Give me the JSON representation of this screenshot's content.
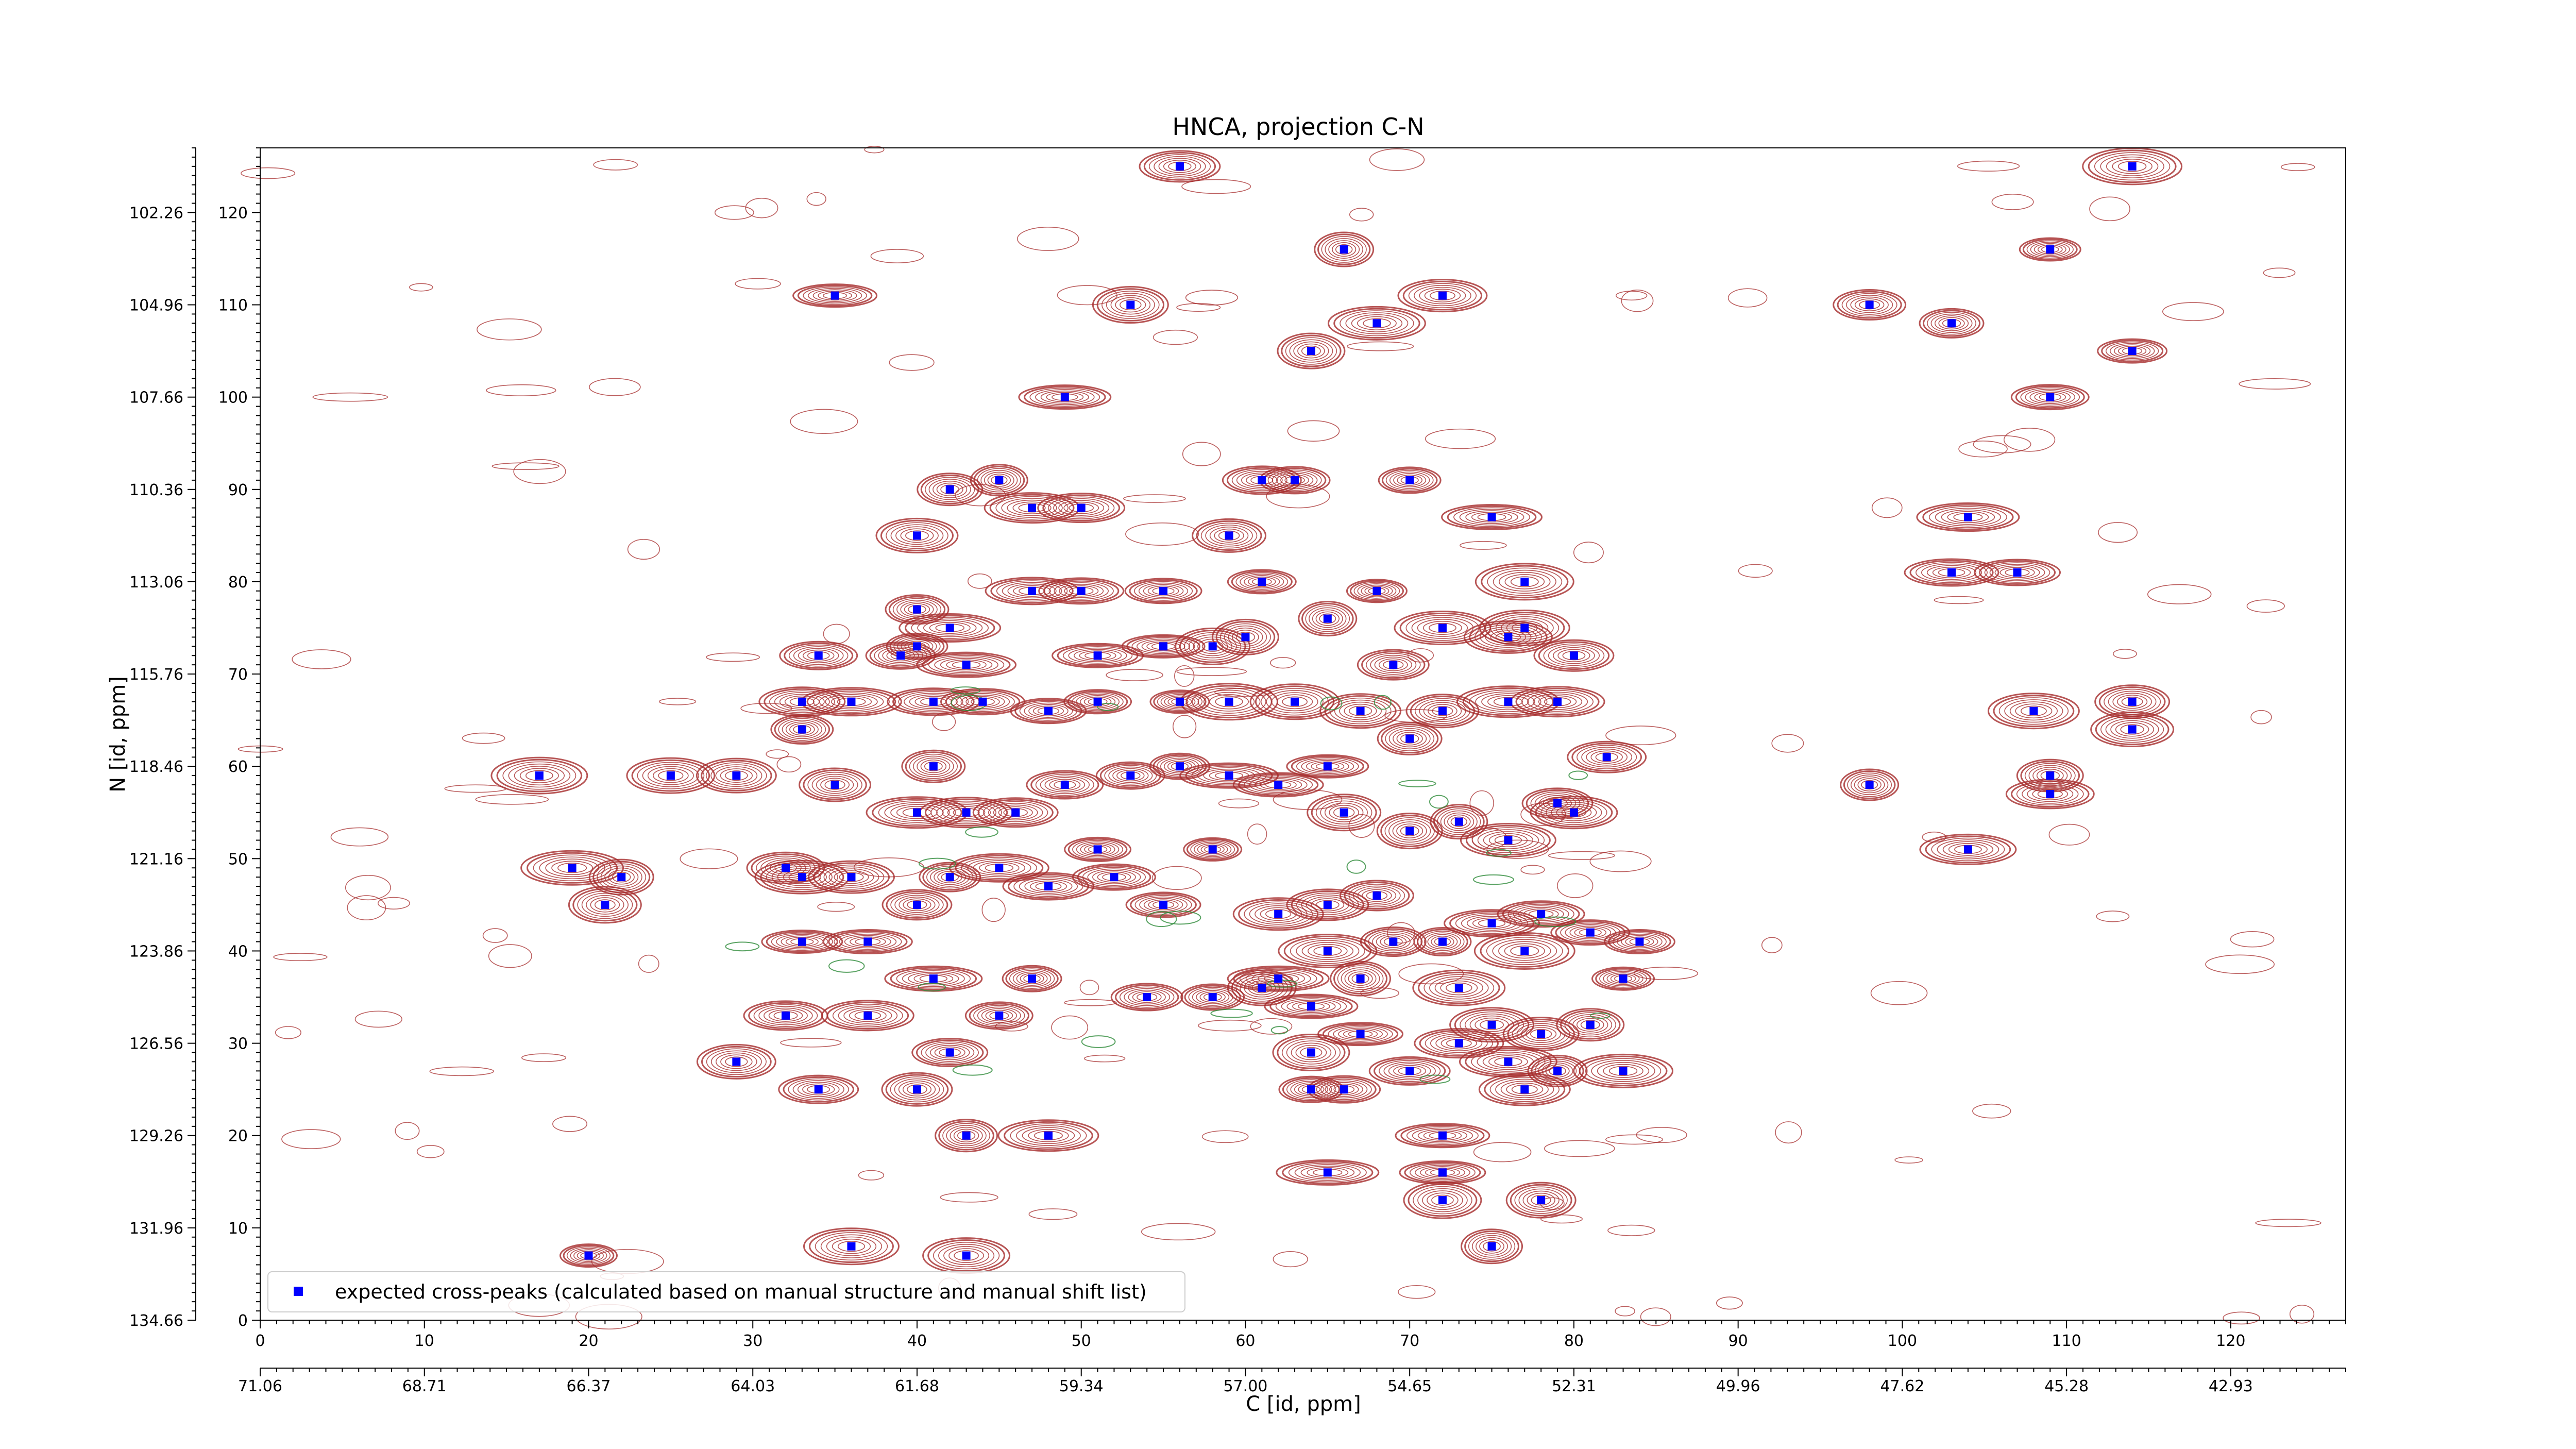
{
  "chart_data": {
    "type": "scatter",
    "title": "HNCA, projection C-N",
    "xlabel": "C [id, ppm]",
    "ylabel": "N [id, ppm]",
    "xlim": [
      0,
      127
    ],
    "ylim": [
      0,
      127
    ],
    "x_ticks": [
      0,
      10,
      20,
      30,
      40,
      50,
      60,
      70,
      80,
      90,
      100,
      110,
      120
    ],
    "x_secondary_ticks": [
      "71.06",
      "68.71",
      "66.37",
      "64.03",
      "61.68",
      "59.34",
      "57.00",
      "54.65",
      "52.31",
      "49.96",
      "47.62",
      "45.28",
      "42.93"
    ],
    "y_ticks": [
      0,
      10,
      20,
      30,
      40,
      50,
      60,
      70,
      80,
      90,
      100,
      110,
      120
    ],
    "y_secondary_ticks": [
      "134.66",
      "131.96",
      "129.26",
      "126.56",
      "123.86",
      "121.16",
      "118.46",
      "115.76",
      "113.06",
      "110.36",
      "107.66",
      "104.96",
      "102.26"
    ],
    "grid": false,
    "legend_position": "lower-left",
    "contour_colors": {
      "positive": "#a52a2a",
      "negative": "#2e8b3a"
    },
    "series": [
      {
        "name": "expected cross-peaks (calculated based on manual structure and manual shift list)",
        "color": "#0000ff",
        "marker": "square",
        "points": [
          [
            20,
            7
          ],
          [
            36,
            8
          ],
          [
            43,
            7
          ],
          [
            29,
            28
          ],
          [
            40,
            25
          ],
          [
            43,
            20
          ],
          [
            48,
            20
          ],
          [
            37,
            33
          ],
          [
            32,
            33
          ],
          [
            42,
            29
          ],
          [
            45,
            33
          ],
          [
            47,
            37
          ],
          [
            41,
            37
          ],
          [
            37,
            41
          ],
          [
            33,
            41
          ],
          [
            21,
            45
          ],
          [
            22,
            48
          ],
          [
            19,
            49
          ],
          [
            33,
            48
          ],
          [
            36,
            48
          ],
          [
            32,
            49
          ],
          [
            40,
            45
          ],
          [
            42,
            48
          ],
          [
            45,
            49
          ],
          [
            48,
            47
          ],
          [
            52,
            48
          ],
          [
            55,
            45
          ],
          [
            51,
            51
          ],
          [
            58,
            51
          ],
          [
            17,
            59
          ],
          [
            25,
            59
          ],
          [
            29,
            59
          ],
          [
            35,
            58
          ],
          [
            41,
            60
          ],
          [
            40,
            55
          ],
          [
            43,
            55
          ],
          [
            46,
            55
          ],
          [
            49,
            58
          ],
          [
            53,
            59
          ],
          [
            56,
            60
          ],
          [
            59,
            59
          ],
          [
            62,
            58
          ],
          [
            65,
            60
          ],
          [
            66,
            55
          ],
          [
            70,
            53
          ],
          [
            73,
            54
          ],
          [
            76,
            52
          ],
          [
            80,
            55
          ],
          [
            82,
            61
          ],
          [
            79,
            56
          ],
          [
            33,
            64
          ],
          [
            36,
            67
          ],
          [
            41,
            67
          ],
          [
            44,
            67
          ],
          [
            48,
            66
          ],
          [
            51,
            67
          ],
          [
            56,
            67
          ],
          [
            59,
            67
          ],
          [
            63,
            67
          ],
          [
            67,
            66
          ],
          [
            72,
            66
          ],
          [
            70,
            63
          ],
          [
            76,
            67
          ],
          [
            79,
            67
          ],
          [
            33,
            67
          ],
          [
            34,
            72
          ],
          [
            39,
            72
          ],
          [
            40,
            73
          ],
          [
            43,
            71
          ],
          [
            51,
            72
          ],
          [
            55,
            73
          ],
          [
            58,
            73
          ],
          [
            60,
            74
          ],
          [
            65,
            76
          ],
          [
            72,
            75
          ],
          [
            76,
            74
          ],
          [
            80,
            72
          ],
          [
            69,
            71
          ],
          [
            40,
            77
          ],
          [
            42,
            75
          ],
          [
            47,
            79
          ],
          [
            50,
            79
          ],
          [
            55,
            79
          ],
          [
            61,
            80
          ],
          [
            68,
            79
          ],
          [
            77,
            80
          ],
          [
            77,
            75
          ],
          [
            40,
            85
          ],
          [
            59,
            85
          ],
          [
            42,
            90
          ],
          [
            45,
            91
          ],
          [
            47,
            88
          ],
          [
            50,
            88
          ],
          [
            61,
            91
          ],
          [
            63,
            91
          ],
          [
            70,
            91
          ],
          [
            75,
            87
          ],
          [
            49,
            100
          ],
          [
            35,
            111
          ],
          [
            53,
            110
          ],
          [
            64,
            105
          ],
          [
            66,
            116
          ],
          [
            68,
            108
          ],
          [
            72,
            111
          ],
          [
            56,
            125
          ],
          [
            98,
            110
          ],
          [
            103,
            108
          ],
          [
            104,
            87
          ],
          [
            103,
            81
          ],
          [
            107,
            81
          ],
          [
            109,
            100
          ],
          [
            114,
            105
          ],
          [
            109,
            116
          ],
          [
            114,
            125
          ],
          [
            108,
            66
          ],
          [
            114,
            64
          ],
          [
            114,
            67
          ],
          [
            109,
            59
          ],
          [
            98,
            58
          ],
          [
            104,
            51
          ],
          [
            109,
            57
          ],
          [
            34,
            25
          ],
          [
            54,
            35
          ],
          [
            58,
            35
          ],
          [
            62,
            37
          ],
          [
            64,
            34
          ],
          [
            67,
            31
          ],
          [
            64,
            29
          ],
          [
            61,
            36
          ],
          [
            67,
            37
          ],
          [
            65,
            40
          ],
          [
            62,
            44
          ],
          [
            65,
            45
          ],
          [
            68,
            46
          ],
          [
            69,
            41
          ],
          [
            72,
            41
          ],
          [
            75,
            43
          ],
          [
            78,
            44
          ],
          [
            81,
            42
          ],
          [
            84,
            41
          ],
          [
            83,
            37
          ],
          [
            77,
            40
          ],
          [
            73,
            36
          ],
          [
            75,
            32
          ],
          [
            78,
            31
          ],
          [
            81,
            32
          ],
          [
            79,
            27
          ],
          [
            76,
            28
          ],
          [
            73,
            30
          ],
          [
            70,
            27
          ],
          [
            66,
            25
          ],
          [
            64,
            25
          ],
          [
            65,
            16
          ],
          [
            72,
            20
          ],
          [
            72,
            16
          ],
          [
            72,
            13
          ],
          [
            78,
            13
          ],
          [
            75,
            8
          ],
          [
            83,
            27
          ],
          [
            77,
            25
          ]
        ]
      }
    ]
  }
}
